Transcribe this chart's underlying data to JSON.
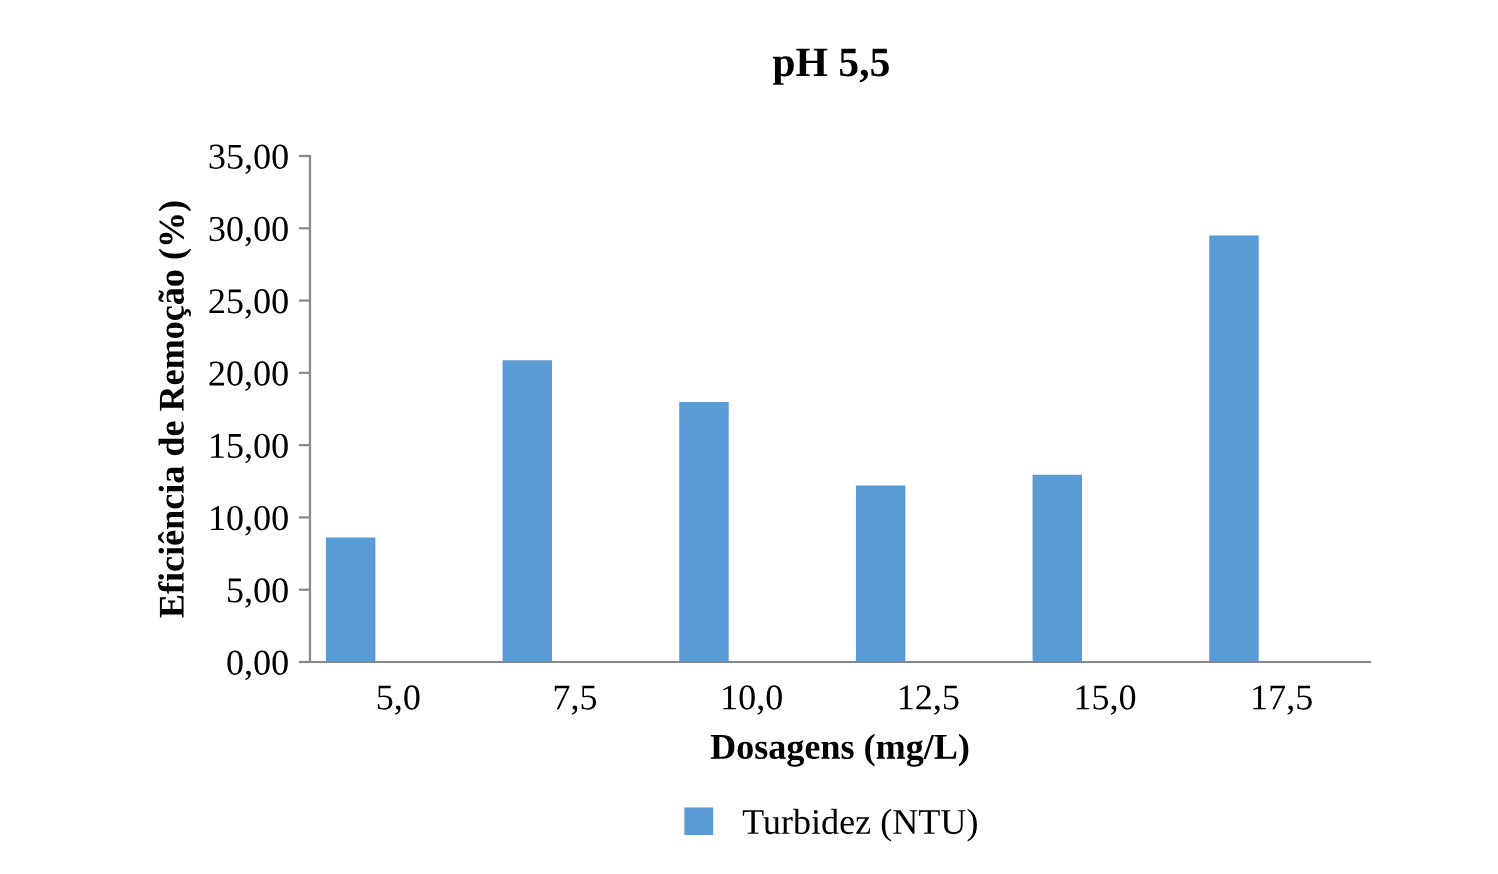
{
  "chart_data": {
    "type": "bar",
    "title": "pH 5,5",
    "xlabel": "Dosagens (mg/L)",
    "ylabel": "Eficiência de Remoção (%)",
    "categories": [
      "5,0",
      "7,5",
      "10,0",
      "12,5",
      "15,0",
      "17,5"
    ],
    "series": [
      {
        "name": "Turbidez (NTU)",
        "color": "#5b9bd5",
        "values": [
          8.62,
          20.88,
          17.99,
          12.2,
          12.96,
          29.5
        ]
      }
    ],
    "ylim": [
      0,
      35
    ],
    "yticks": [
      {
        "value": 0,
        "label": "0,00"
      },
      {
        "value": 5,
        "label": "5,00"
      },
      {
        "value": 10,
        "label": "10,00"
      },
      {
        "value": 15,
        "label": "15,00"
      },
      {
        "value": 20,
        "label": "20,00"
      },
      {
        "value": 25,
        "label": "25,00"
      },
      {
        "value": 30,
        "label": "30,00"
      },
      {
        "value": 35,
        "label": "35,00"
      }
    ],
    "grid": false,
    "legend": "bottom"
  }
}
